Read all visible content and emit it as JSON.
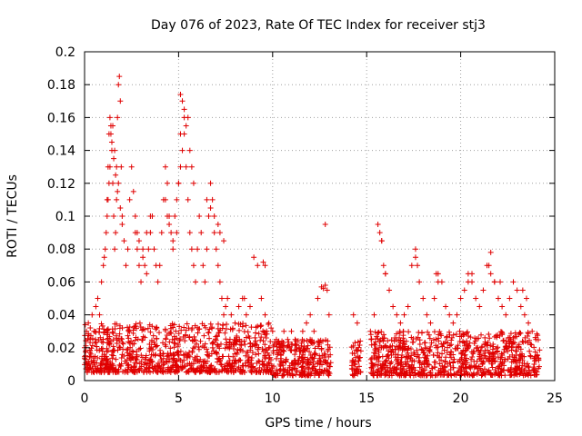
{
  "chart_data": {
    "type": "scatter",
    "title": "Day 076 of 2023, Rate Of TEC Index for receiver stj3",
    "xlabel": "GPS time / hours",
    "ylabel": "ROTI / TECUs",
    "xlim": [
      0,
      25
    ],
    "ylim": [
      0,
      0.2
    ],
    "x_ticks": [
      0,
      5,
      10,
      15,
      20,
      25
    ],
    "x_tick_labels": [
      "0",
      "5",
      "10",
      "15",
      "20",
      "25"
    ],
    "y_ticks": [
      0,
      0.02,
      0.04,
      0.06,
      0.08,
      0.1,
      0.12,
      0.14,
      0.16,
      0.18,
      0.2
    ],
    "y_tick_labels": [
      "0",
      "0.02",
      "0.04",
      "0.06",
      "0.08",
      "0.1",
      "0.12",
      "0.14",
      "0.16",
      "0.18",
      "0.2"
    ],
    "grid": true,
    "marker": "+",
    "series": [
      {
        "name": "ROTI",
        "color": "#e00000",
        "x": [
          0.0,
          0.1,
          0.2,
          0.3,
          0.4,
          0.5,
          0.6,
          0.7,
          0.8,
          0.9,
          1.0,
          1.05,
          1.1,
          1.15,
          1.2,
          1.25,
          1.3,
          1.35,
          1.4,
          1.45,
          1.5,
          1.55,
          1.6,
          1.65,
          1.7,
          1.75,
          1.8,
          1.85,
          1.9,
          1.95,
          2.0,
          2.1,
          2.2,
          2.3,
          2.4,
          2.5,
          2.6,
          2.7,
          2.8,
          2.9,
          3.0,
          3.1,
          3.2,
          3.3,
          3.4,
          3.5,
          3.6,
          3.7,
          3.8,
          3.9,
          4.0,
          4.1,
          4.2,
          4.3,
          4.4,
          4.5,
          4.6,
          4.7,
          4.8,
          4.9,
          5.0,
          5.1,
          5.2,
          5.3,
          5.4,
          5.5,
          5.6,
          5.7,
          5.8,
          5.9,
          6.0,
          6.1,
          6.2,
          6.3,
          6.4,
          6.5,
          6.6,
          6.7,
          6.8,
          6.9,
          7.0,
          7.1,
          7.2,
          7.3,
          7.4,
          7.5,
          7.6,
          7.8,
          8.0,
          8.2,
          8.4,
          8.6,
          8.8,
          9.0,
          9.2,
          9.4,
          9.6,
          9.8,
          10.0,
          10.2,
          10.4,
          10.6,
          10.8,
          11.0,
          11.2,
          11.4,
          11.6,
          11.8,
          12.0,
          12.2,
          12.4,
          12.6,
          12.8,
          13.0,
          14.3,
          14.5,
          15.2,
          15.4,
          15.6,
          15.8,
          16.0,
          16.2,
          16.4,
          16.6,
          16.8,
          17.0,
          17.2,
          17.4,
          17.6,
          17.8,
          18.0,
          18.2,
          18.4,
          18.6,
          18.8,
          19.0,
          19.2,
          19.4,
          19.6,
          19.8,
          20.0,
          20.2,
          20.4,
          20.6,
          20.8,
          21.0,
          21.2,
          21.4,
          21.6,
          21.8,
          22.0,
          22.2,
          22.4,
          22.6,
          22.8,
          23.0,
          23.2,
          23.4,
          23.6,
          23.8,
          24.0,
          1.4,
          1.5,
          1.6,
          1.7,
          1.8,
          1.25,
          1.3,
          1.35,
          1.45,
          1.55,
          1.65,
          1.75,
          1.2,
          1.9,
          2.0,
          2.7,
          2.8,
          2.9,
          3.1,
          3.3,
          3.5,
          4.3,
          4.4,
          4.5,
          4.7,
          4.9,
          5.0,
          5.1,
          5.2,
          5.3,
          5.4,
          5.5,
          5.6,
          5.7,
          5.8,
          5.1,
          5.3,
          6.5,
          6.7,
          6.9,
          7.1,
          7.2,
          7.4,
          8.5,
          9.5,
          9.6,
          12.7,
          12.8,
          12.9,
          15.7,
          15.8,
          15.9,
          16.0,
          17.6,
          17.7,
          18.7,
          18.8,
          20.4,
          20.6,
          21.5,
          21.6,
          21.8,
          22.1,
          23.3,
          23.5
        ],
        "y": [
          0.02,
          0.03,
          0.035,
          0.025,
          0.04,
          0.03,
          0.045,
          0.05,
          0.04,
          0.06,
          0.07,
          0.075,
          0.08,
          0.09,
          0.11,
          0.13,
          0.15,
          0.16,
          0.155,
          0.14,
          0.12,
          0.1,
          0.08,
          0.09,
          0.11,
          0.16,
          0.18,
          0.185,
          0.17,
          0.13,
          0.1,
          0.085,
          0.07,
          0.08,
          0.11,
          0.13,
          0.115,
          0.09,
          0.08,
          0.07,
          0.06,
          0.075,
          0.07,
          0.065,
          0.08,
          0.09,
          0.1,
          0.08,
          0.07,
          0.06,
          0.07,
          0.09,
          0.11,
          0.13,
          0.12,
          0.1,
          0.09,
          0.08,
          0.1,
          0.11,
          0.12,
          0.15,
          0.17,
          0.16,
          0.13,
          0.11,
          0.09,
          0.08,
          0.07,
          0.06,
          0.08,
          0.1,
          0.09,
          0.07,
          0.06,
          0.08,
          0.1,
          0.12,
          0.11,
          0.09,
          0.08,
          0.07,
          0.06,
          0.05,
          0.04,
          0.045,
          0.05,
          0.04,
          0.035,
          0.045,
          0.05,
          0.04,
          0.045,
          0.075,
          0.07,
          0.05,
          0.04,
          0.035,
          0.03,
          0.025,
          0.02,
          0.03,
          0.025,
          0.03,
          0.025,
          0.02,
          0.03,
          0.035,
          0.04,
          0.03,
          0.05,
          0.057,
          0.095,
          0.04,
          0.04,
          0.035,
          0.03,
          0.04,
          0.095,
          0.085,
          0.065,
          0.055,
          0.045,
          0.04,
          0.035,
          0.04,
          0.045,
          0.07,
          0.08,
          0.06,
          0.05,
          0.04,
          0.035,
          0.05,
          0.065,
          0.06,
          0.045,
          0.04,
          0.035,
          0.04,
          0.05,
          0.055,
          0.065,
          0.06,
          0.05,
          0.045,
          0.055,
          0.07,
          0.078,
          0.06,
          0.05,
          0.045,
          0.04,
          0.05,
          0.06,
          0.055,
          0.045,
          0.04,
          0.035,
          0.03,
          0.025,
          0.15,
          0.155,
          0.14,
          0.13,
          0.12,
          0.11,
          0.12,
          0.13,
          0.145,
          0.135,
          0.125,
          0.115,
          0.1,
          0.105,
          0.095,
          0.1,
          0.09,
          0.085,
          0.08,
          0.09,
          0.1,
          0.11,
          0.1,
          0.095,
          0.085,
          0.09,
          0.12,
          0.13,
          0.14,
          0.15,
          0.155,
          0.16,
          0.14,
          0.13,
          0.12,
          0.174,
          0.165,
          0.11,
          0.105,
          0.1,
          0.095,
          0.09,
          0.085,
          0.05,
          0.072,
          0.07,
          0.056,
          0.058,
          0.055,
          0.09,
          0.085,
          0.07,
          0.065,
          0.075,
          0.07,
          0.065,
          0.06,
          0.06,
          0.065,
          0.07,
          0.065,
          0.06,
          0.06,
          0.055,
          0.05
        ]
      }
    ],
    "background_band": {
      "description": "dense cloud of low-ROTI points across the day",
      "segments": [
        [
          0.0,
          10.0,
          0.005,
          0.035
        ],
        [
          10.0,
          13.1,
          0.003,
          0.025
        ],
        [
          14.2,
          14.7,
          0.003,
          0.025
        ],
        [
          15.2,
          24.2,
          0.003,
          0.03
        ]
      ]
    }
  }
}
